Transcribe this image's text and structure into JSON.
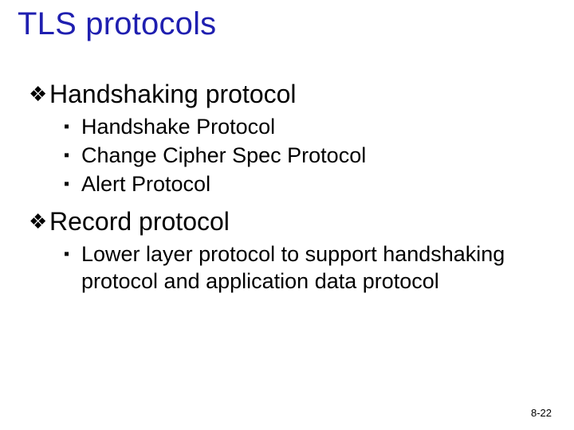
{
  "colors": {
    "title_color": "#1f1fb0",
    "text_color": "#000000",
    "background_color": "#ffffff"
  },
  "typography": {
    "title_fontsize": 40,
    "lvl1_fontsize": 32,
    "lvl2_fontsize": 27,
    "footer_fontsize": 13,
    "font_family": "Arial"
  },
  "bullets": {
    "lvl1_glyph": "❖",
    "lvl2_glyph": "▪"
  },
  "title": "TLS protocols",
  "items": [
    {
      "label": "Handshaking protocol",
      "children": [
        {
          "label": "Handshake Protocol"
        },
        {
          "label": "Change Cipher Spec Protocol"
        },
        {
          "label": "Alert Protocol"
        }
      ]
    },
    {
      "label": "Record protocol",
      "children": [
        {
          "label": "Lower layer protocol to support handshaking protocol and application data protocol"
        }
      ]
    }
  ],
  "footer": "8-22"
}
